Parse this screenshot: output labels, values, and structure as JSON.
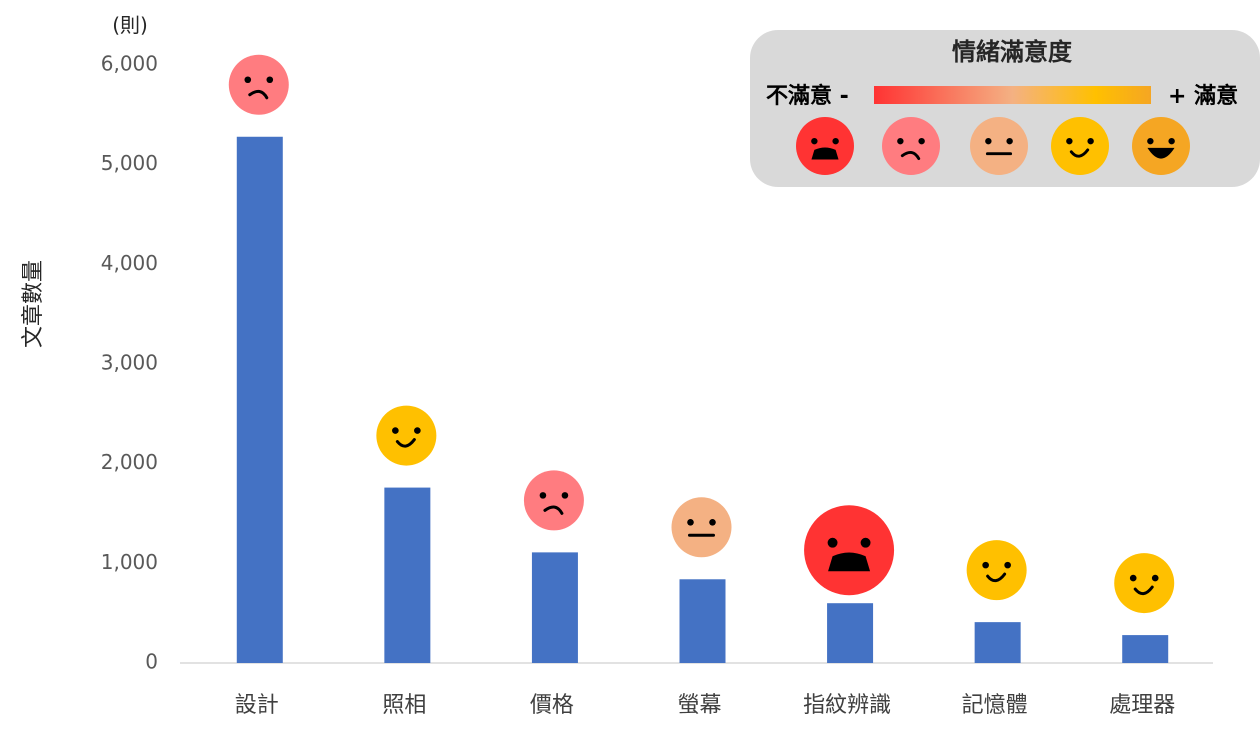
{
  "chart_data": {
    "type": "bar",
    "unit": "(則)",
    "ylabel": "文章數量",
    "ylim": [
      0,
      6000
    ],
    "yticks": [
      0,
      1000,
      2000,
      3000,
      4000,
      5000,
      6000
    ],
    "ytick_labels": [
      "0",
      "1,000",
      "2,000",
      "3,000",
      "4,000",
      "5,000",
      "6,000"
    ],
    "categories": [
      "設計",
      "照相",
      "價格",
      "螢幕",
      "指紋辨識",
      "記憶體",
      "處理器"
    ],
    "values": [
      5280,
      1760,
      1110,
      840,
      600,
      410,
      280
    ],
    "sentiment": [
      "unsatisfied",
      "satisfied",
      "unsatisfied",
      "neutral",
      "very-unsatisfied",
      "satisfied",
      "satisfied"
    ],
    "bar_color": "#4472C4",
    "grid": false,
    "legend": {
      "placement": "top-right",
      "title": "情緒滿意度",
      "low_label": "不滿意 -",
      "high_label": "+ 滿意",
      "gradient": [
        "#FF3333",
        "#F4B183",
        "#FFC000",
        "#F5A623"
      ],
      "levels": [
        {
          "name": "very-unsatisfied",
          "color": "#FF3333",
          "icon": "very-sad-face-icon"
        },
        {
          "name": "unsatisfied",
          "color": "#FF7C80",
          "icon": "frown-face-icon"
        },
        {
          "name": "neutral",
          "color": "#F4B183",
          "icon": "neutral-face-icon"
        },
        {
          "name": "satisfied",
          "color": "#FFC000",
          "icon": "smile-face-icon"
        },
        {
          "name": "very-satisfied",
          "color": "#F5A623",
          "icon": "grin-face-icon"
        }
      ]
    }
  }
}
